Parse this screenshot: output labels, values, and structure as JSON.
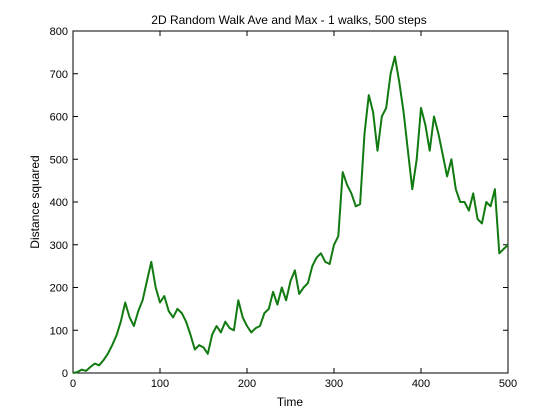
{
  "chart_data": {
    "type": "line",
    "title": "2D Random Walk Ave and Max - 1 walks, 500 steps",
    "xlabel": "Time",
    "ylabel": "Distance squared",
    "xlim": [
      0,
      500
    ],
    "ylim": [
      0,
      800
    ],
    "xticks": [
      0,
      100,
      200,
      300,
      400,
      500
    ],
    "yticks": [
      0,
      100,
      200,
      300,
      400,
      500,
      600,
      700,
      800
    ],
    "xtick_labels": [
      "0",
      "100",
      "200",
      "300",
      "400",
      "500"
    ],
    "ytick_labels": [
      "0",
      "100",
      "200",
      "300",
      "400",
      "500",
      "600",
      "700",
      "800"
    ],
    "grid": false,
    "legend": "none",
    "series": [
      {
        "color": "#117a11",
        "x": [
          0,
          5,
          10,
          15,
          20,
          25,
          30,
          35,
          40,
          45,
          50,
          55,
          60,
          65,
          70,
          75,
          80,
          85,
          90,
          95,
          100,
          105,
          110,
          115,
          120,
          125,
          130,
          135,
          140,
          145,
          150,
          155,
          160,
          165,
          170,
          175,
          180,
          185,
          190,
          195,
          200,
          205,
          210,
          215,
          220,
          225,
          230,
          235,
          240,
          245,
          250,
          255,
          260,
          265,
          270,
          275,
          280,
          285,
          290,
          295,
          300,
          305,
          310,
          315,
          320,
          325,
          330,
          335,
          340,
          345,
          350,
          355,
          360,
          365,
          370,
          375,
          380,
          385,
          390,
          395,
          400,
          405,
          410,
          415,
          420,
          425,
          430,
          435,
          440,
          445,
          450,
          455,
          460,
          465,
          470,
          475,
          480,
          485,
          490,
          495,
          500
        ],
        "y": [
          0,
          2,
          8,
          5,
          14,
          22,
          18,
          30,
          45,
          65,
          88,
          120,
          165,
          130,
          110,
          145,
          170,
          215,
          260,
          200,
          165,
          180,
          145,
          130,
          150,
          140,
          120,
          90,
          55,
          65,
          60,
          45,
          90,
          110,
          95,
          120,
          105,
          100,
          170,
          130,
          110,
          95,
          105,
          110,
          140,
          150,
          190,
          160,
          200,
          170,
          215,
          240,
          185,
          200,
          210,
          250,
          270,
          280,
          260,
          255,
          300,
          320,
          470,
          440,
          420,
          390,
          395,
          560,
          650,
          610,
          520,
          600,
          620,
          700,
          740,
          680,
          610,
          520,
          430,
          500,
          620,
          580,
          520,
          600,
          560,
          510,
          460,
          500,
          430,
          400,
          400,
          380,
          420,
          360,
          350,
          400,
          390,
          430,
          280,
          290,
          300
        ]
      }
    ]
  }
}
